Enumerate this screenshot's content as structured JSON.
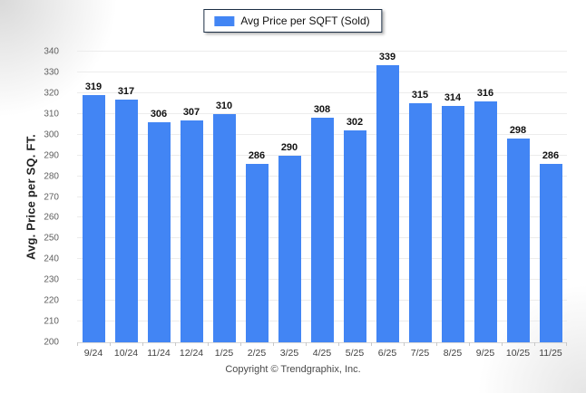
{
  "legend": {
    "label": "Avg Price per SQFT (Sold)"
  },
  "footer": "Copyright © Trendgraphix, Inc.",
  "colors": {
    "bar": "#4285f4",
    "gridline": "#ececec",
    "axis_line": "#d6d6d6",
    "legend_border": "#1c2f45"
  },
  "chart_data": {
    "type": "bar",
    "title": "",
    "xlabel": "",
    "ylabel": "Avg. Price per SQ. FT.",
    "categories": [
      "9/24",
      "10/24",
      "11/24",
      "12/24",
      "1/25",
      "2/25",
      "3/25",
      "4/25",
      "5/25",
      "6/25",
      "7/25",
      "8/25",
      "9/25",
      "10/25",
      "11/25"
    ],
    "values": [
      319,
      317,
      306,
      307,
      310,
      286,
      290,
      308,
      302,
      339,
      315,
      314,
      316,
      298,
      286
    ],
    "series": [
      {
        "name": "Avg Price per SQFT (Sold)",
        "values": [
          319,
          317,
          306,
          307,
          310,
          286,
          290,
          308,
          302,
          339,
          315,
          314,
          316,
          298,
          286
        ]
      }
    ],
    "ylim": [
      200,
      340
    ],
    "yticks": [
      200,
      210,
      220,
      230,
      240,
      250,
      260,
      270,
      280,
      290,
      300,
      310,
      320,
      330,
      340
    ],
    "grid": true,
    "legend_position": "top-center",
    "value_labels": true
  }
}
